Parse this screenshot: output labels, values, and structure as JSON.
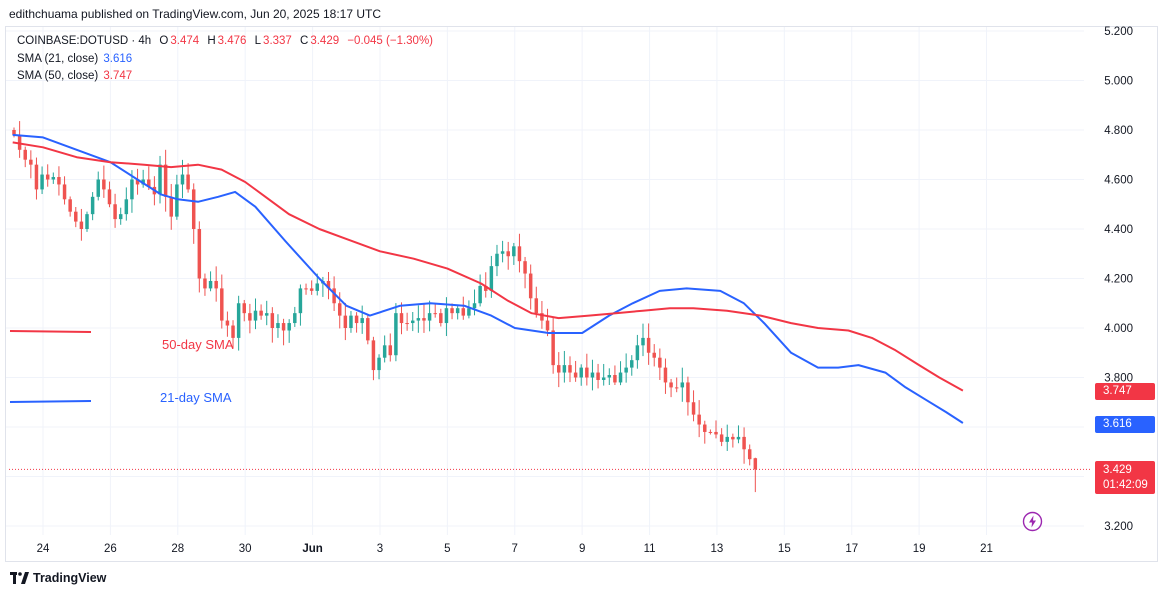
{
  "header": {
    "publisher_line": "edithchuama published on TradingView.com, Jun 20, 2025 18:17 UTC"
  },
  "legend": {
    "symbol": "COINBASE:DOTUSD · 4h",
    "ohlc": [
      {
        "key": "O",
        "value": "3.474"
      },
      {
        "key": "H",
        "value": "3.476"
      },
      {
        "key": "L",
        "value": "3.337"
      },
      {
        "key": "C",
        "value": "3.429"
      }
    ],
    "change": "−0.045 (−1.30%)",
    "sma21": {
      "label": "SMA (21, close)",
      "value": "3.616"
    },
    "sma50": {
      "label": "SMA (50, close)",
      "value": "3.747"
    }
  },
  "annotations": {
    "sma50_label": "50-day SMA",
    "sma21_label": "21-day SMA"
  },
  "badges": {
    "sma50": "3.747",
    "sma21": "3.616",
    "last_price": "3.429",
    "countdown": "01:42:09"
  },
  "footer": {
    "brand": "TradingView"
  },
  "colors": {
    "up": "#26a69a",
    "down": "#ef5350",
    "sma21": "#2962ff",
    "sma50": "#f23645",
    "grid": "#f0f3fa",
    "text": "#131722",
    "replay": "#9c27b0"
  },
  "icons": {
    "replay": "lightning-circle-icon",
    "brand": "tradingview-logo-icon"
  },
  "chart_data": {
    "type": "candlestick",
    "instrument": "COINBASE:DOTUSD",
    "interval": "4h",
    "ylim": [
      3.2,
      5.2
    ],
    "y_ticks": [
      "3.200",
      "3.400",
      "3.600",
      "3.800",
      "4.000",
      "4.200",
      "4.400",
      "4.600",
      "4.800",
      "5.000",
      "5.200"
    ],
    "x_ticks": [
      "24",
      "26",
      "28",
      "30",
      "Jun",
      "3",
      "5",
      "7",
      "9",
      "11",
      "13",
      "15",
      "17",
      "19",
      "21"
    ],
    "x_tick_days": [
      24,
      26,
      28,
      30,
      32,
      34,
      36,
      38,
      40,
      42,
      44,
      46,
      48,
      50,
      52
    ],
    "x_range_days": [
      23.05,
      53.35
    ],
    "closes": [
      4.78,
      4.72,
      4.68,
      4.66,
      4.56,
      4.62,
      4.6,
      4.61,
      4.58,
      4.52,
      4.47,
      4.43,
      4.4,
      4.46,
      4.53,
      4.6,
      4.56,
      4.5,
      4.44,
      4.46,
      4.52,
      4.6,
      4.58,
      4.6,
      4.57,
      4.54,
      4.66,
      4.53,
      4.45,
      4.58,
      4.62,
      4.56,
      4.4,
      4.2,
      4.16,
      4.19,
      4.16,
      4.03,
      4.01,
      3.96,
      4.1,
      4.06,
      4.03,
      4.07,
      4.05,
      4.06,
      4.0,
      4.02,
      3.99,
      4.02,
      4.06,
      4.16,
      4.16,
      4.15,
      4.18,
      4.19,
      4.16,
      4.1,
      4.05,
      4.0,
      4.05,
      4.02,
      4.04,
      3.95,
      3.83,
      3.88,
      3.93,
      3.89,
      4.06,
      4.02,
      4.02,
      4.03,
      4.04,
      4.03,
      4.06,
      4.06,
      4.02,
      4.08,
      4.06,
      4.08,
      4.05,
      4.08,
      4.1,
      4.17,
      4.15,
      4.25,
      4.3,
      4.31,
      4.29,
      4.33,
      4.27,
      4.22,
      4.12,
      4.06,
      4.03,
      3.99,
      3.85,
      3.82,
      3.85,
      3.82,
      3.8,
      3.84,
      3.8,
      3.82,
      3.79,
      3.8,
      3.81,
      3.78,
      3.82,
      3.84,
      3.87,
      3.93,
      3.96,
      3.9,
      3.88,
      3.84,
      3.78,
      3.76,
      3.76,
      3.78,
      3.7,
      3.65,
      3.61,
      3.58,
      3.58,
      3.57,
      3.54,
      3.56,
      3.55,
      3.56,
      3.51,
      3.47,
      3.429
    ],
    "up_flags": [
      0,
      0,
      0,
      0,
      0,
      1,
      0,
      1,
      0,
      0,
      0,
      0,
      0,
      1,
      1,
      1,
      0,
      0,
      0,
      1,
      1,
      1,
      0,
      1,
      0,
      0,
      1,
      0,
      0,
      1,
      1,
      0,
      0,
      0,
      0,
      1,
      0,
      0,
      0,
      0,
      1,
      0,
      0,
      1,
      0,
      1,
      0,
      1,
      0,
      1,
      1,
      1,
      0,
      0,
      1,
      1,
      0,
      0,
      0,
      0,
      1,
      0,
      1,
      0,
      0,
      1,
      1,
      0,
      1,
      0,
      0,
      1,
      1,
      0,
      1,
      0,
      0,
      1,
      0,
      1,
      0,
      1,
      1,
      1,
      0,
      1,
      1,
      1,
      0,
      1,
      0,
      0,
      0,
      0,
      0,
      0,
      0,
      0,
      1,
      0,
      0,
      1,
      0,
      1,
      0,
      1,
      1,
      0,
      1,
      1,
      1,
      1,
      1,
      0,
      0,
      0,
      0,
      0,
      0,
      1,
      0,
      0,
      0,
      0,
      0,
      0,
      0,
      1,
      0,
      1,
      0,
      0,
      0
    ],
    "last_candle": {
      "open": 3.474,
      "high": 3.476,
      "low": 3.337,
      "close": 3.429
    },
    "series": [
      {
        "name": "SMA (21, close)",
        "x_days": [
          23.1,
          24.0,
          25.0,
          26.0,
          26.8,
          27.5,
          28.0,
          28.6,
          29.2,
          29.7,
          30.3,
          31.2,
          32.2,
          33.0,
          33.7,
          34.6,
          35.5,
          36.5,
          37.3,
          38.0,
          39.0,
          40.0,
          40.8,
          41.5,
          42.3,
          43.1,
          44.1,
          44.8,
          45.4,
          46.2,
          47.0,
          47.6,
          48.2,
          49.0,
          49.6,
          50.2,
          50.8,
          51.3
        ],
        "values": [
          4.78,
          4.77,
          4.72,
          4.67,
          4.6,
          4.54,
          4.52,
          4.51,
          4.53,
          4.55,
          4.49,
          4.35,
          4.2,
          4.09,
          4.05,
          4.09,
          4.1,
          4.09,
          4.05,
          4.0,
          3.98,
          3.98,
          4.05,
          4.1,
          4.15,
          4.16,
          4.15,
          4.1,
          4.02,
          3.9,
          3.84,
          3.84,
          3.85,
          3.82,
          3.76,
          3.71,
          3.66,
          3.616
        ]
      },
      {
        "name": "SMA (50, close)",
        "x_days": [
          23.1,
          24.0,
          25.0,
          26.0,
          27.0,
          27.8,
          28.6,
          29.3,
          30.0,
          30.6,
          31.3,
          32.2,
          33.0,
          34.0,
          35.0,
          36.0,
          37.0,
          37.8,
          38.5,
          39.3,
          40.2,
          41.0,
          41.8,
          42.6,
          43.3,
          44.3,
          45.3,
          46.2,
          47.0,
          47.9,
          48.6,
          49.3,
          50.0,
          50.6,
          51.3
        ],
        "values": [
          4.75,
          4.73,
          4.69,
          4.67,
          4.66,
          4.65,
          4.66,
          4.64,
          4.59,
          4.53,
          4.46,
          4.4,
          4.36,
          4.31,
          4.28,
          4.24,
          4.18,
          4.11,
          4.06,
          4.04,
          4.05,
          4.06,
          4.07,
          4.08,
          4.08,
          4.07,
          4.05,
          4.02,
          4.0,
          3.99,
          3.96,
          3.91,
          3.85,
          3.8,
          3.747
        ]
      }
    ]
  }
}
